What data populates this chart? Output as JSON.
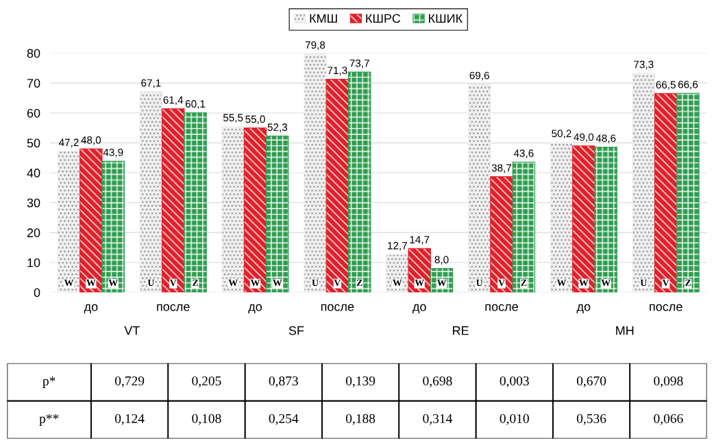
{
  "chart_data": {
    "type": "bar",
    "categories": [
      "до",
      "после",
      "до",
      "после",
      "до",
      "после",
      "до",
      "после"
    ],
    "series": [
      {
        "name": "КМШ",
        "color": "#f0f0f0",
        "values": [
          47.2,
          67.1,
          55.5,
          79.8,
          12.7,
          69.6,
          50.2,
          73.3
        ],
        "value_labels": [
          "47,2",
          "67,1",
          "55,5",
          "79,8",
          "12,7",
          "69,6",
          "50,2",
          "73,3"
        ]
      },
      {
        "name": "КШРС",
        "color": "#e0202a",
        "values": [
          48.0,
          61.4,
          55.0,
          71.3,
          14.7,
          38.7,
          49.0,
          66.5
        ],
        "value_labels": [
          "48,0",
          "61,4",
          "55,0",
          "71,3",
          "14,7",
          "38,7",
          "49,0",
          "66,5"
        ]
      },
      {
        "name": "КШИК",
        "color": "#2e9e50",
        "values": [
          43.9,
          60.1,
          52.3,
          73.7,
          8.0,
          43.6,
          48.6,
          66.6
        ],
        "value_labels": [
          "43,9",
          "60,1",
          "52,3",
          "73,7",
          "8,0",
          "43,6",
          "48,6",
          "66,6"
        ]
      }
    ],
    "ylim": [
      0,
      80
    ],
    "yticks": [
      0,
      10,
      20,
      30,
      40,
      50,
      60,
      70,
      80
    ],
    "grid": "y",
    "legend": "top",
    "annotations": [
      "VT",
      "SF",
      "RE",
      "MH",
      "W",
      "W",
      "W",
      "U",
      "V",
      "Z",
      "W",
      "W",
      "W",
      "U",
      "V",
      "Z",
      "W",
      "W",
      "W",
      "U",
      "V",
      "Z",
      "W",
      "W",
      "W",
      "U",
      "V",
      "Z",
      "p*",
      "0,729",
      "0,205",
      "0,873",
      "0,139",
      "0,698",
      "0,003",
      "0,670",
      "0,098",
      "p**",
      "0,124",
      "0,108",
      "0,254",
      "0,188",
      "0,314",
      "0,010",
      "0,536",
      "0,066"
    ]
  }
}
